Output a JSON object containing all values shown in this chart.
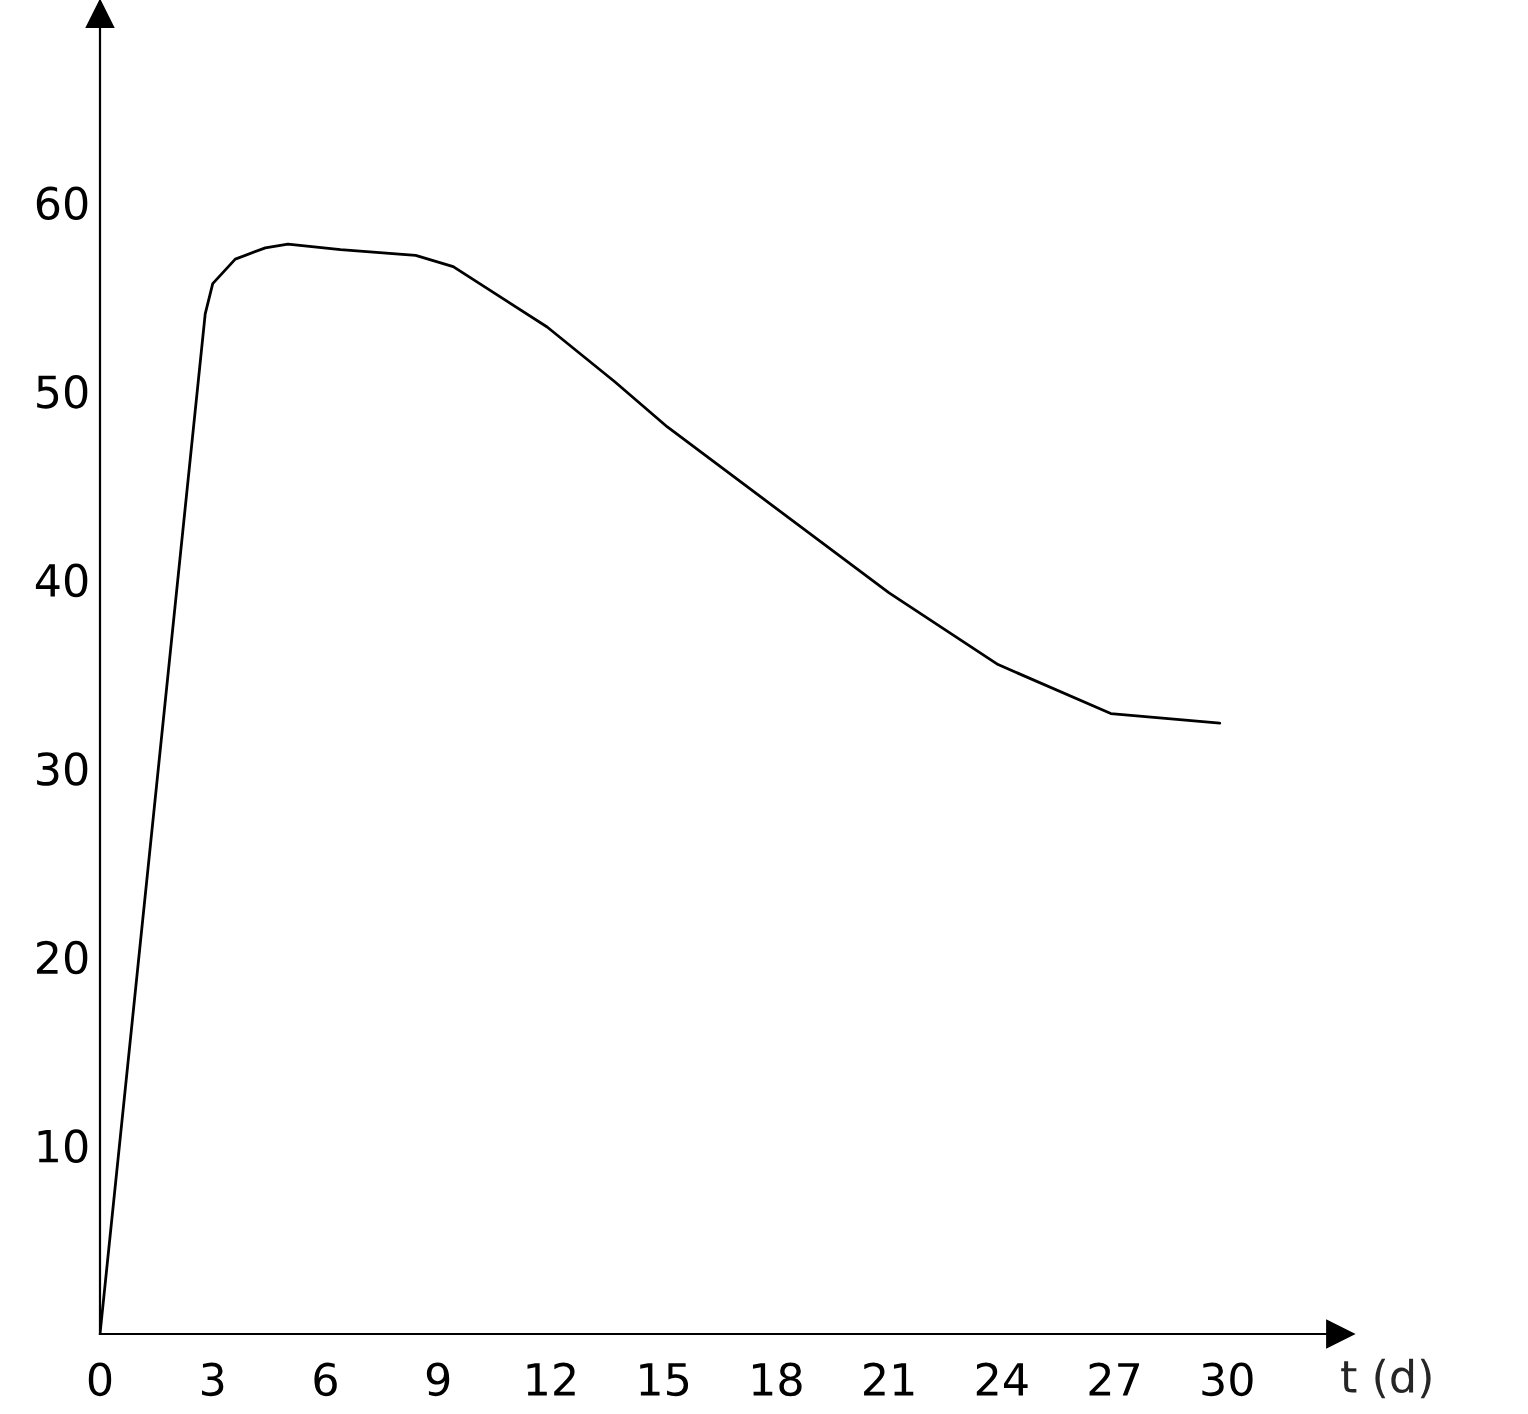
{
  "chart_data": {
    "type": "line",
    "xlabel": "t (d)",
    "x": [
      0,
      2.8,
      3.0,
      3.6,
      4.4,
      5.0,
      6.4,
      8.4,
      9.4,
      11.9,
      13.7,
      15.1,
      21.0,
      23.9,
      26.9,
      29.8
    ],
    "series": [
      {
        "color": "#000000",
        "values": [
          0,
          54.1,
          55.7,
          57.0,
          57.6,
          57.8,
          57.5,
          57.2,
          56.6,
          53.4,
          50.5,
          48.1,
          39.3,
          35.5,
          32.9,
          32.4
        ]
      }
    ],
    "xlim": [
      0,
      33
    ],
    "ylim": [
      0,
      70
    ],
    "xticks": [
      0,
      3,
      6,
      9,
      12,
      15,
      18,
      21,
      24,
      27,
      30
    ],
    "yticks": [
      10,
      20,
      30,
      40,
      50,
      60
    ],
    "grid": false,
    "legend": false,
    "marker": "none",
    "line_style": "solid"
  }
}
